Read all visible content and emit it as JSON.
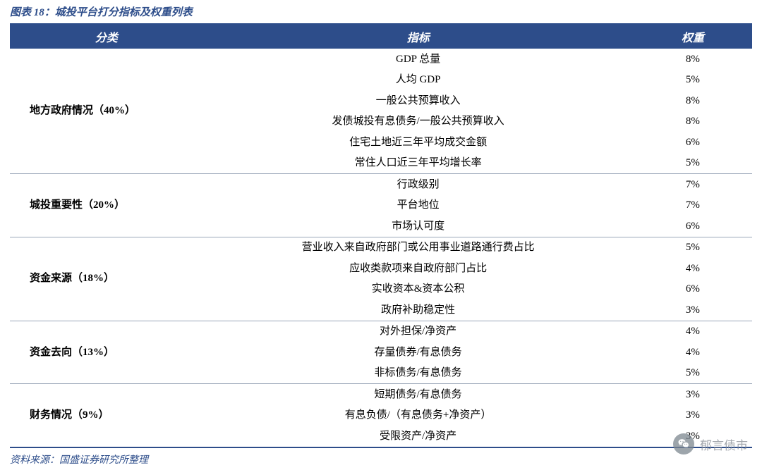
{
  "title_prefix": "图表 18：",
  "title_text": "城投平台打分指标及权重列表",
  "header": {
    "category": "分类",
    "indicator": "指标",
    "weight": "权重"
  },
  "groups": [
    {
      "category": "地方政府情况（40%）",
      "rows": [
        {
          "indicator": "GDP 总量",
          "weight": "8%"
        },
        {
          "indicator": "人均 GDP",
          "weight": "5%"
        },
        {
          "indicator": "一般公共预算收入",
          "weight": "8%"
        },
        {
          "indicator": "发债城投有息债务/一般公共预算收入",
          "weight": "8%"
        },
        {
          "indicator": "住宅土地近三年平均成交金额",
          "weight": "6%"
        },
        {
          "indicator": "常住人口近三年平均增长率",
          "weight": "5%"
        }
      ]
    },
    {
      "category": "城投重要性（20%）",
      "rows": [
        {
          "indicator": "行政级别",
          "weight": "7%"
        },
        {
          "indicator": "平台地位",
          "weight": "7%"
        },
        {
          "indicator": "市场认可度",
          "weight": "6%"
        }
      ]
    },
    {
      "category": "资金来源（18%）",
      "rows": [
        {
          "indicator": "营业收入来自政府部门或公用事业道路通行费占比",
          "weight": "5%"
        },
        {
          "indicator": "应收类款项来自政府部门占比",
          "weight": "4%"
        },
        {
          "indicator": "实收资本&资本公积",
          "weight": "6%"
        },
        {
          "indicator": "政府补助稳定性",
          "weight": "3%"
        }
      ]
    },
    {
      "category": "资金去向（13%）",
      "rows": [
        {
          "indicator": "对外担保/净资产",
          "weight": "4%"
        },
        {
          "indicator": "存量债券/有息债务",
          "weight": "4%"
        },
        {
          "indicator": "非标债务/有息债务",
          "weight": "5%"
        }
      ]
    },
    {
      "category": "财务情况（9%）",
      "rows": [
        {
          "indicator": "短期债务/有息债务",
          "weight": "3%"
        },
        {
          "indicator": "有息负债/（有息债务+净资产）",
          "weight": "3%"
        },
        {
          "indicator": "受限资产/净资产",
          "weight": "3%"
        }
      ]
    }
  ],
  "source": "资料来源：国盛证券研究所整理",
  "watermark": "郁言债市",
  "colors": {
    "primary": "#2d4d8a",
    "separator": "#9aa6b8",
    "text": "#000000",
    "background": "#ffffff",
    "watermark_text": "#868c94",
    "watermark_icon_bg": "#7d8790"
  },
  "font": {
    "header_size_pt": 16,
    "body_size_pt": 15,
    "title_size_pt": 15,
    "source_size_pt": 14
  }
}
